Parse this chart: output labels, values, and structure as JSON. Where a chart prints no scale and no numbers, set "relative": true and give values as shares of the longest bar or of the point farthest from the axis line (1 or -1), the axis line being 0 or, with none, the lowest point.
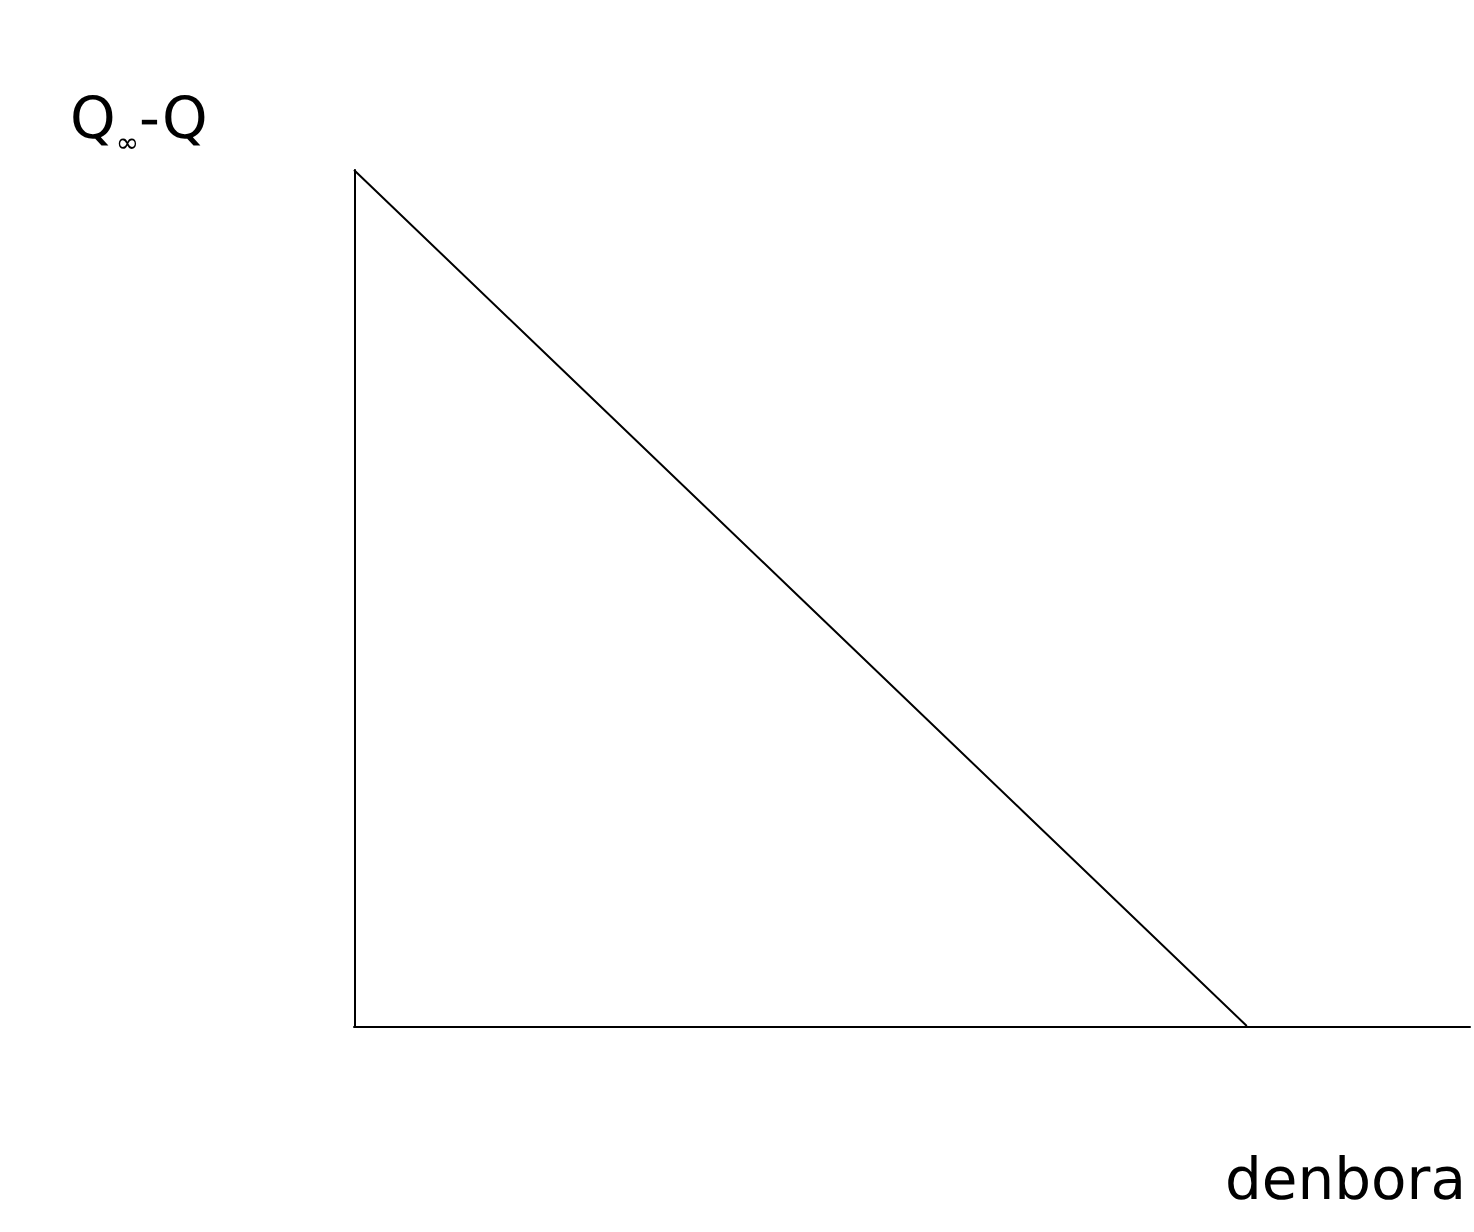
{
  "chart_data": {
    "type": "line",
    "relative": true,
    "xlabel": "denbora",
    "ylabel": "Q$_{∞}$-Q",
    "categories": [
      null,
      null,
      null,
      null,
      null,
      null
    ],
    "series": [
      {
        "color": "#000000",
        "values": [
          1,
          0.75,
          0.5,
          0.25,
          0,
          null
        ]
      }
    ],
    "marker": "none",
    "line_style": "solid",
    "grid": false,
    "tick_labels": false
  }
}
